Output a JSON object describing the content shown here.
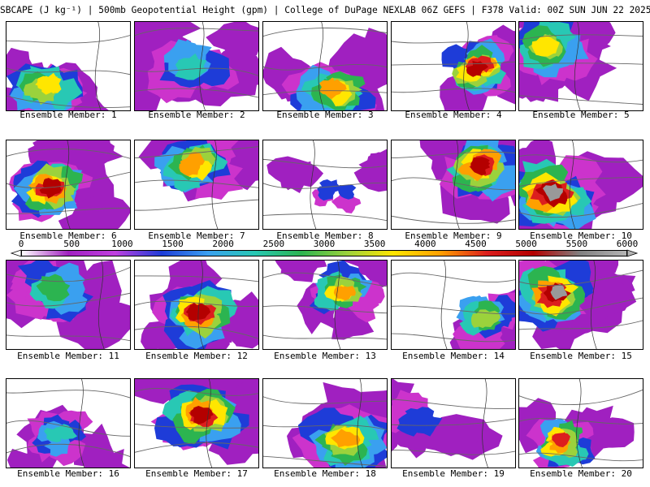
{
  "title": "SBCAPE (J kg⁻¹) | 500mb Geopotential Height (gpm) | College of DuPage NEXLAB 06Z GEFS | F378 Valid: 00Z SUN JUN 22 2025",
  "members": [
    "Ensemble Member: 1",
    "Ensemble Member: 2",
    "Ensemble Member: 3",
    "Ensemble Member: 4",
    "Ensemble Member: 5",
    "Ensemble Member: 6",
    "Ensemble Member: 7",
    "Ensemble Member: 8",
    "Ensemble Member: 9",
    "Ensemble Member: 10",
    "Ensemble Member: 11",
    "Ensemble Member: 12",
    "Ensemble Member: 13",
    "Ensemble Member: 14",
    "Ensemble Member: 15",
    "Ensemble Member: 16",
    "Ensemble Member: 17",
    "Ensemble Member: 18",
    "Ensemble Member: 19",
    "Ensemble Member: 20"
  ],
  "colorbar": {
    "labels": [
      "0",
      "500",
      "1000",
      "1500",
      "2000",
      "2500",
      "3000",
      "3500",
      "4000",
      "4500",
      "5000",
      "5500",
      "6000"
    ],
    "colors": [
      "#ffffff",
      "#a020c0",
      "#c040e0",
      "#1e3cd8",
      "#3aa0f0",
      "#28c8b4",
      "#2cb450",
      "#9bd23c",
      "#ffe600",
      "#ffa000",
      "#dc1e1e",
      "#b40000",
      "#808080",
      "#b4b4b4"
    ]
  }
}
